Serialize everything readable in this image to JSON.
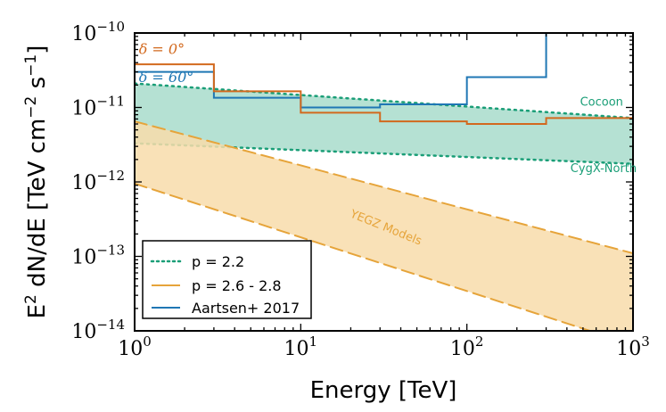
{
  "chart_data": {
    "type": "line",
    "xlabel": "Energy [TeV]",
    "ylabel_parts": {
      "pre": "E",
      "sup1": "2",
      "mid": " dN/dE [TeV cm",
      "sup2": "−2",
      "mid2": " s",
      "sup3": "−1",
      "post": "]"
    },
    "xscale": "log",
    "yscale": "log",
    "xlim": [
      1,
      1000
    ],
    "ylim": [
      1e-14,
      1e-10
    ],
    "x_ticks": [
      {
        "value": 1,
        "base": "10",
        "exp": "0"
      },
      {
        "value": 10,
        "base": "10",
        "exp": "1"
      },
      {
        "value": 100,
        "base": "10",
        "exp": "2"
      },
      {
        "value": 1000,
        "base": "10",
        "exp": "3"
      }
    ],
    "y_ticks": [
      {
        "value": 1e-14,
        "base": "10",
        "exp": "−14"
      },
      {
        "value": 1e-13,
        "base": "10",
        "exp": "−13"
      },
      {
        "value": 1e-12,
        "base": "10",
        "exp": "−12"
      },
      {
        "value": 1e-11,
        "base": "10",
        "exp": "−11"
      },
      {
        "value": 1e-10,
        "base": "10",
        "exp": "−10"
      }
    ],
    "bands": [
      {
        "name": "p = 2.2",
        "color": "#1a9e77",
        "fill": "#a8dccb",
        "upper": {
          "x": [
            1,
            1000
          ],
          "y": [
            2.1e-11,
            7.2e-12
          ]
        },
        "lower": {
          "x": [
            1,
            1000
          ],
          "y": [
            3.3e-12,
            1.75e-12
          ]
        }
      },
      {
        "name": "p = 2.6 - 2.8",
        "color": "#e6a43a",
        "fill": "#f8dcaa",
        "upper": {
          "x": [
            1,
            1000
          ],
          "y": [
            6.5e-12,
            1.1e-13
          ]
        },
        "lower": {
          "x": [
            1,
            1000
          ],
          "y": [
            9.5e-13,
            6.5e-15
          ]
        }
      }
    ],
    "series": [
      {
        "name": "Aartsen+ 2017",
        "color": "#1f77b4",
        "style": "step",
        "x": [
          1,
          3,
          10,
          30,
          100,
          300
        ],
        "y": [
          3e-11,
          1.35e-11,
          1e-11,
          1.1e-11,
          2.55e-11,
          1e-10
        ]
      },
      {
        "color": "#d2691e",
        "style": "step",
        "x": [
          1,
          3,
          10,
          30,
          100,
          300,
          1000
        ],
        "y": [
          3.8e-11,
          1.65e-11,
          8.5e-12,
          6.5e-12,
          6e-12,
          7.2e-12,
          7.2e-12
        ]
      }
    ],
    "annotations": [
      {
        "text": "δ = 0°",
        "x": 1.06,
        "y": 5.2e-11,
        "color": "#d2691e",
        "style": "math"
      },
      {
        "text": "δ = 60°",
        "x": 1.06,
        "y": 2.2e-11,
        "color": "#1f77b4",
        "style": "math"
      },
      {
        "text": "Cocoon",
        "x": 480,
        "y": 1.05e-11,
        "color": "#1a9e77",
        "style": "plain"
      },
      {
        "text": "CygX-North",
        "x": 420,
        "y": 1.35e-12,
        "color": "#1a9e77",
        "style": "plain"
      },
      {
        "text": "YEGZ Models",
        "x": 32,
        "y": 2.2e-13,
        "color": "#e6a43a",
        "style": "plain",
        "rotate": 22
      }
    ],
    "legend": {
      "position": "lower-left",
      "entries": [
        {
          "label": "p = 2.2",
          "color": "#1a9e77",
          "dash": "dotted"
        },
        {
          "label": "p = 2.6 - 2.8",
          "color": "#e6a43a",
          "dash": "solid"
        },
        {
          "label": "Aartsen+ 2017",
          "color": "#1f77b4",
          "dash": "solid"
        }
      ]
    }
  }
}
